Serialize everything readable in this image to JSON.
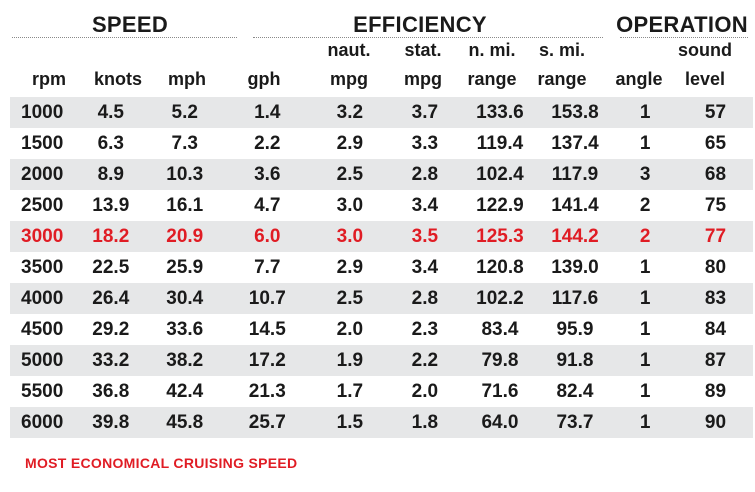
{
  "groups": {
    "speed": "SPEED",
    "efficiency": "EFFICIENCY",
    "operation": "OPERATION"
  },
  "columns": [
    {
      "top": "",
      "bottom": "rpm"
    },
    {
      "top": "",
      "bottom": "knots"
    },
    {
      "top": "",
      "bottom": "mph"
    },
    {
      "top": "",
      "bottom": "gph"
    },
    {
      "top": "naut.",
      "bottom": "mpg"
    },
    {
      "top": "stat.",
      "bottom": "mpg"
    },
    {
      "top": "n. mi.",
      "bottom": "range"
    },
    {
      "top": "s. mi.",
      "bottom": "range"
    },
    {
      "top": "",
      "bottom": "angle"
    },
    {
      "top": "sound",
      "bottom": "level"
    }
  ],
  "rows": [
    [
      "1000",
      "4.5",
      "5.2",
      "1.4",
      "3.2",
      "3.7",
      "133.6",
      "153.8",
      "1",
      "57"
    ],
    [
      "1500",
      "6.3",
      "7.3",
      "2.2",
      "2.9",
      "3.3",
      "119.4",
      "137.4",
      "1",
      "65"
    ],
    [
      "2000",
      "8.9",
      "10.3",
      "3.6",
      "2.5",
      "2.8",
      "102.4",
      "117.9",
      "3",
      "68"
    ],
    [
      "2500",
      "13.9",
      "16.1",
      "4.7",
      "3.0",
      "3.4",
      "122.9",
      "141.4",
      "2",
      "75"
    ],
    [
      "3000",
      "18.2",
      "20.9",
      "6.0",
      "3.0",
      "3.5",
      "125.3",
      "144.2",
      "2",
      "77"
    ],
    [
      "3500",
      "22.5",
      "25.9",
      "7.7",
      "2.9",
      "3.4",
      "120.8",
      "139.0",
      "1",
      "80"
    ],
    [
      "4000",
      "26.4",
      "30.4",
      "10.7",
      "2.5",
      "2.8",
      "102.2",
      "117.6",
      "1",
      "83"
    ],
    [
      "4500",
      "29.2",
      "33.6",
      "14.5",
      "2.0",
      "2.3",
      "83.4",
      "95.9",
      "1",
      "84"
    ],
    [
      "5000",
      "33.2",
      "38.2",
      "17.2",
      "1.9",
      "2.2",
      "79.8",
      "91.8",
      "1",
      "87"
    ],
    [
      "5500",
      "36.8",
      "42.4",
      "21.3",
      "1.7",
      "2.0",
      "71.6",
      "82.4",
      "1",
      "89"
    ],
    [
      "6000",
      "39.8",
      "45.8",
      "25.7",
      "1.5",
      "1.8",
      "64.0",
      "73.7",
      "1",
      "90"
    ]
  ],
  "highlight_row_rpm": "3000",
  "highlight_color": "#e01c24",
  "stripe_color": "#e6e7e8",
  "footnote": "MOST ECONOMICAL CRUISING SPEED"
}
